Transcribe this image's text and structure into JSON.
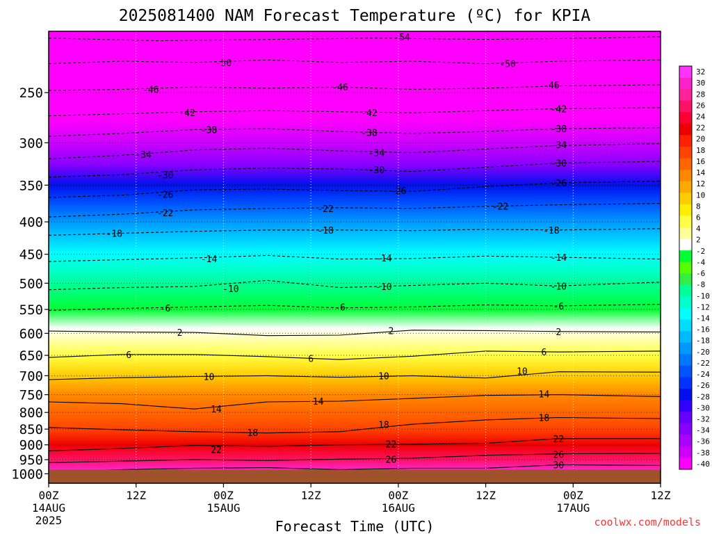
{
  "chart_data": {
    "type": "heatmap",
    "title": "2025081400 NAM Forecast Temperature (ºC) for KPIA",
    "xlabel": "Forecast Time (UTC)",
    "ylabel": "",
    "credit": "coolwx.com/models",
    "x_range_hours": [
      0,
      84
    ],
    "y_range_mb": [
      1035,
      200
    ],
    "y_scale": "log",
    "ground_level_mb": 985,
    "x_ticks": [
      {
        "h": 0,
        "label": "00Z",
        "day": "14AUG",
        "year": "2025"
      },
      {
        "h": 12,
        "label": "12Z",
        "day": "",
        "year": ""
      },
      {
        "h": 24,
        "label": "00Z",
        "day": "15AUG",
        "year": ""
      },
      {
        "h": 36,
        "label": "12Z",
        "day": "",
        "year": ""
      },
      {
        "h": 48,
        "label": "00Z",
        "day": "16AUG",
        "year": ""
      },
      {
        "h": 60,
        "label": "12Z",
        "day": "",
        "year": ""
      },
      {
        "h": 72,
        "label": "00Z",
        "day": "17AUG",
        "year": ""
      },
      {
        "h": 84,
        "label": "12Z",
        "day": "",
        "year": ""
      }
    ],
    "y_ticks": [
      250,
      300,
      350,
      400,
      450,
      500,
      550,
      600,
      650,
      700,
      750,
      800,
      850,
      900,
      950,
      1000
    ],
    "colorbar_labels": [
      32,
      30,
      28,
      26,
      24,
      22,
      20,
      18,
      16,
      14,
      12,
      10,
      8,
      6,
      4,
      2,
      -2,
      -4,
      -6,
      -8,
      -10,
      -12,
      -14,
      -16,
      -18,
      -20,
      -22,
      -24,
      -26,
      -28,
      -30,
      -32,
      -34,
      -36,
      -38,
      -40
    ],
    "colorbar_colors": [
      "#ff33ff",
      "#ff22cc",
      "#ff2299",
      "#ff1166",
      "#ff0033",
      "#ee0000",
      "#ff2200",
      "#ff4400",
      "#ff6600",
      "#ff8800",
      "#ffaa00",
      "#ffcc00",
      "#ffee00",
      "#ffff44",
      "#ffff99",
      "#ffffff",
      "#00ff33",
      "#55ff00",
      "#33ee44",
      "#00ff99",
      "#00ffcc",
      "#00ffff",
      "#00ddff",
      "#00bbff",
      "#0099ff",
      "#0077ff",
      "#0055ff",
      "#0033ff",
      "#0011ee",
      "#3300ff",
      "#6600ff",
      "#8800ff",
      "#aa00ff",
      "#cc00ff",
      "#ff00ff"
    ],
    "temperature_profile": [
      {
        "p": 200,
        "t": -56
      },
      {
        "p": 220,
        "t": -52
      },
      {
        "p": 250,
        "t": -46
      },
      {
        "p": 275,
        "t": -41
      },
      {
        "p": 300,
        "t": -36
      },
      {
        "p": 325,
        "t": -32
      },
      {
        "p": 350,
        "t": -27
      },
      {
        "p": 375,
        "t": -23
      },
      {
        "p": 400,
        "t": -19
      },
      {
        "p": 450,
        "t": -13
      },
      {
        "p": 500,
        "t": -9
      },
      {
        "p": 550,
        "t": -3
      },
      {
        "p": 590,
        "t": 1
      },
      {
        "p": 620,
        "t": 4
      },
      {
        "p": 650,
        "t": 6
      },
      {
        "p": 700,
        "t": 10
      },
      {
        "p": 750,
        "t": 13
      },
      {
        "p": 800,
        "t": 16
      },
      {
        "p": 850,
        "t": 18
      },
      {
        "p": 900,
        "t": 21
      },
      {
        "p": 950,
        "t": 25
      },
      {
        "p": 985,
        "t": 30
      }
    ],
    "contours": [
      {
        "t": -54,
        "dashed": true,
        "pts": [
          [
            0,
            205
          ],
          [
            15,
            207
          ],
          [
            30,
            206
          ],
          [
            45,
            205
          ],
          [
            60,
            206
          ],
          [
            75,
            205
          ],
          [
            84,
            204
          ]
        ],
        "labels": [
          [
            48.5,
            204
          ]
        ]
      },
      {
        "t": -50,
        "dashed": true,
        "pts": [
          [
            0,
            225
          ],
          [
            10,
            223
          ],
          [
            20,
            224
          ],
          [
            30,
            222
          ],
          [
            40,
            224
          ],
          [
            50,
            223
          ],
          [
            60,
            225
          ],
          [
            70,
            223
          ],
          [
            84,
            222
          ]
        ],
        "labels": [
          [
            24,
            224
          ],
          [
            63,
            225
          ]
        ]
      },
      {
        "t": -46,
        "dashed": true,
        "pts": [
          [
            0,
            248
          ],
          [
            10,
            247
          ],
          [
            20,
            245
          ],
          [
            30,
            246
          ],
          [
            40,
            245
          ],
          [
            50,
            247
          ],
          [
            60,
            246
          ],
          [
            70,
            244
          ],
          [
            84,
            243
          ]
        ],
        "labels": [
          [
            14,
            247
          ],
          [
            40,
            245
          ],
          [
            69,
            243
          ]
        ]
      },
      {
        "t": -42,
        "dashed": true,
        "pts": [
          [
            0,
            272
          ],
          [
            10,
            270
          ],
          [
            20,
            268
          ],
          [
            30,
            267
          ],
          [
            40,
            268
          ],
          [
            50,
            269
          ],
          [
            60,
            267
          ],
          [
            70,
            265
          ],
          [
            84,
            264
          ]
        ],
        "labels": [
          [
            19,
            269
          ],
          [
            44,
            269
          ],
          [
            70,
            265
          ]
        ]
      },
      {
        "t": -38,
        "dashed": true,
        "pts": [
          [
            0,
            293
          ],
          [
            10,
            290
          ],
          [
            20,
            286
          ],
          [
            30,
            285
          ],
          [
            40,
            288
          ],
          [
            50,
            290
          ],
          [
            60,
            288
          ],
          [
            70,
            285
          ],
          [
            84,
            284
          ]
        ],
        "labels": [
          [
            22,
            286
          ],
          [
            44,
            289
          ],
          [
            70,
            285
          ]
        ]
      },
      {
        "t": -34,
        "dashed": true,
        "pts": [
          [
            0,
            318
          ],
          [
            10,
            314
          ],
          [
            20,
            308
          ],
          [
            30,
            306
          ],
          [
            40,
            309
          ],
          [
            50,
            311
          ],
          [
            60,
            307
          ],
          [
            70,
            303
          ],
          [
            84,
            301
          ]
        ],
        "labels": [
          [
            13,
            313
          ],
          [
            45,
            311
          ],
          [
            70,
            302
          ]
        ]
      },
      {
        "t": -30,
        "dashed": true,
        "pts": [
          [
            0,
            340
          ],
          [
            10,
            337
          ],
          [
            20,
            331
          ],
          [
            30,
            329
          ],
          [
            40,
            330
          ],
          [
            50,
            333
          ],
          [
            60,
            328
          ],
          [
            70,
            323
          ],
          [
            84,
            321
          ]
        ],
        "labels": [
          [
            16,
            337
          ],
          [
            45,
            331
          ],
          [
            70,
            323
          ]
        ]
      },
      {
        "t": -26,
        "dashed": true,
        "pts": [
          [
            0,
            366
          ],
          [
            10,
            363
          ],
          [
            20,
            356
          ],
          [
            30,
            355
          ],
          [
            40,
            357
          ],
          [
            50,
            358
          ],
          [
            60,
            352
          ],
          [
            70,
            347
          ],
          [
            84,
            345
          ]
        ],
        "labels": [
          [
            16,
            362
          ],
          [
            48,
            357
          ],
          [
            70,
            347
          ]
        ]
      },
      {
        "t": -22,
        "dashed": true,
        "pts": [
          [
            0,
            393
          ],
          [
            10,
            389
          ],
          [
            20,
            383
          ],
          [
            30,
            381
          ],
          [
            40,
            380
          ],
          [
            50,
            381
          ],
          [
            60,
            378
          ],
          [
            70,
            376
          ],
          [
            84,
            374
          ]
        ],
        "labels": [
          [
            16,
            387
          ],
          [
            38,
            381
          ],
          [
            62,
            378
          ]
        ]
      },
      {
        "t": -18,
        "dashed": true,
        "pts": [
          [
            0,
            420
          ],
          [
            10,
            417
          ],
          [
            20,
            414
          ],
          [
            30,
            412
          ],
          [
            40,
            412
          ],
          [
            50,
            413
          ],
          [
            60,
            411
          ],
          [
            70,
            412
          ],
          [
            84,
            410
          ]
        ],
        "labels": [
          [
            9,
            417
          ],
          [
            38,
            412
          ],
          [
            69,
            412
          ]
        ]
      },
      {
        "t": -14,
        "dashed": true,
        "pts": [
          [
            0,
            462
          ],
          [
            10,
            459
          ],
          [
            20,
            456
          ],
          [
            30,
            452
          ],
          [
            40,
            458
          ],
          [
            50,
            457
          ],
          [
            60,
            453
          ],
          [
            70,
            455
          ],
          [
            84,
            458
          ]
        ],
        "labels": [
          [
            22,
            457
          ],
          [
            46,
            456
          ],
          [
            70,
            455
          ]
        ]
      },
      {
        "t": -10,
        "dashed": true,
        "pts": [
          [
            0,
            512
          ],
          [
            10,
            508
          ],
          [
            20,
            506
          ],
          [
            30,
            495
          ],
          [
            40,
            508
          ],
          [
            50,
            504
          ],
          [
            60,
            500
          ],
          [
            70,
            505
          ],
          [
            84,
            498
          ]
        ],
        "labels": [
          [
            25,
            510
          ],
          [
            46,
            506
          ],
          [
            70,
            505
          ]
        ]
      },
      {
        "t": -6,
        "dashed": true,
        "pts": [
          [
            0,
            552
          ],
          [
            10,
            548
          ],
          [
            20,
            545
          ],
          [
            30,
            542
          ],
          [
            40,
            547
          ],
          [
            50,
            545
          ],
          [
            60,
            541
          ],
          [
            70,
            543
          ],
          [
            84,
            540
          ]
        ],
        "labels": [
          [
            16,
            547
          ],
          [
            40,
            545
          ],
          [
            70,
            543
          ]
        ]
      },
      {
        "t": 2,
        "dashed": false,
        "pts": [
          [
            0,
            595
          ],
          [
            10,
            597
          ],
          [
            20,
            598
          ],
          [
            30,
            605
          ],
          [
            40,
            604
          ],
          [
            50,
            593
          ],
          [
            60,
            594
          ],
          [
            70,
            596
          ],
          [
            84,
            597
          ]
        ],
        "labels": [
          [
            18,
            598
          ],
          [
            47,
            594
          ],
          [
            70,
            596
          ]
        ]
      },
      {
        "t": 6,
        "dashed": false,
        "pts": [
          [
            0,
            655
          ],
          [
            10,
            648
          ],
          [
            20,
            648
          ],
          [
            30,
            653
          ],
          [
            40,
            660
          ],
          [
            50,
            652
          ],
          [
            60,
            640
          ],
          [
            70,
            642
          ],
          [
            84,
            640
          ]
        ],
        "labels": [
          [
            11,
            648
          ],
          [
            36,
            657
          ],
          [
            68,
            642
          ]
        ]
      },
      {
        "t": 10,
        "dashed": false,
        "pts": [
          [
            0,
            710
          ],
          [
            10,
            705
          ],
          [
            20,
            702
          ],
          [
            30,
            700
          ],
          [
            40,
            704
          ],
          [
            50,
            700
          ],
          [
            60,
            706
          ],
          [
            70,
            690
          ],
          [
            84,
            691
          ]
        ],
        "labels": [
          [
            22,
            702
          ],
          [
            46,
            700
          ],
          [
            65,
            688
          ]
        ]
      },
      {
        "t": 14,
        "dashed": false,
        "pts": [
          [
            0,
            770
          ],
          [
            10,
            775
          ],
          [
            20,
            790
          ],
          [
            30,
            770
          ],
          [
            40,
            768
          ],
          [
            50,
            760
          ],
          [
            60,
            752
          ],
          [
            70,
            750
          ],
          [
            84,
            755
          ]
        ],
        "labels": [
          [
            23,
            790
          ],
          [
            37,
            768
          ],
          [
            68,
            748
          ]
        ]
      },
      {
        "t": 18,
        "dashed": false,
        "pts": [
          [
            0,
            845
          ],
          [
            10,
            852
          ],
          [
            20,
            858
          ],
          [
            30,
            862
          ],
          [
            40,
            858
          ],
          [
            50,
            835
          ],
          [
            60,
            822
          ],
          [
            70,
            815
          ],
          [
            84,
            818
          ]
        ],
        "labels": [
          [
            28,
            860
          ],
          [
            46,
            836
          ],
          [
            68,
            815
          ]
        ]
      },
      {
        "t": 22,
        "dashed": false,
        "pts": [
          [
            0,
            920
          ],
          [
            10,
            912
          ],
          [
            20,
            902
          ],
          [
            30,
            905
          ],
          [
            40,
            900
          ],
          [
            50,
            898
          ],
          [
            60,
            895
          ],
          [
            70,
            880
          ],
          [
            84,
            880
          ]
        ],
        "labels": [
          [
            23,
            915
          ],
          [
            47,
            897
          ],
          [
            70,
            880
          ]
        ]
      },
      {
        "t": 26,
        "dashed": false,
        "pts": [
          [
            0,
            960
          ],
          [
            10,
            955
          ],
          [
            20,
            950
          ],
          [
            30,
            953
          ],
          [
            40,
            948
          ],
          [
            50,
            945
          ],
          [
            60,
            935
          ],
          [
            70,
            930
          ],
          [
            84,
            928
          ]
        ],
        "labels": [
          [
            47,
            948
          ],
          [
            70,
            932
          ]
        ]
      },
      {
        "t": 30,
        "dashed": false,
        "pts": [
          [
            0,
            992
          ],
          [
            10,
            985
          ],
          [
            20,
            980
          ],
          [
            30,
            978
          ],
          [
            40,
            985
          ],
          [
            50,
            980
          ],
          [
            60,
            980
          ],
          [
            70,
            968
          ],
          [
            84,
            970
          ]
        ],
        "labels": [
          [
            70,
            968
          ]
        ]
      }
    ]
  }
}
